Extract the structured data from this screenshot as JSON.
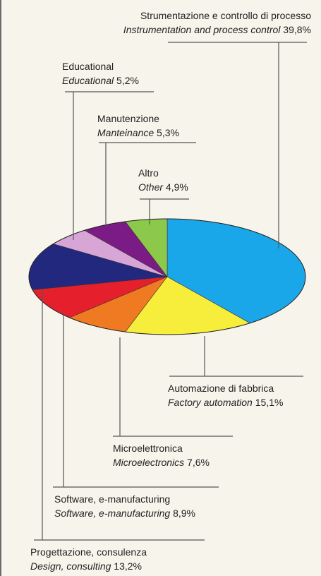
{
  "chart_data": {
    "type": "pie",
    "title": "",
    "series": [
      {
        "name": "",
        "slices": [
          {
            "label_it": "Strumentazione e controllo di processo",
            "label_en": "Instrumentation and process control",
            "value": 39.8,
            "display": "39,8%",
            "color": "#1aa7ea"
          },
          {
            "label_it": "Automazione di fabbrica",
            "label_en": "Factory automation",
            "value": 15.1,
            "display": "15,1%",
            "color": "#f6ee3a"
          },
          {
            "label_it": "Microelettronica",
            "label_en": "Microelectronics",
            "value": 7.6,
            "display": "7,6%",
            "color": "#f07a22"
          },
          {
            "label_it": "Software, e-manufacturing",
            "label_en": "Software, e-manufacturing",
            "value": 8.9,
            "display": "8,9%",
            "color": "#e5202c"
          },
          {
            "label_it": "Progettazione, consulenza",
            "label_en": "Design, consulting",
            "value": 13.2,
            "display": "13,2%",
            "color": "#22287e"
          },
          {
            "label_it": "Educational",
            "label_en": "Educational",
            "value": 5.2,
            "display": "5,2%",
            "color": "#d7a6d6"
          },
          {
            "label_it": "Manutenzione",
            "label_en": "Manteinance",
            "value": 5.3,
            "display": "5,3%",
            "color": "#7b1b86"
          },
          {
            "label_it": "Altro",
            "label_en": "Other",
            "value": 4.9,
            "display": "4,9%",
            "color": "#8cc94b"
          }
        ]
      }
    ],
    "start_angle": "12 o'clock",
    "direction": "clockwise",
    "legend": "callout labels",
    "line_color": "#555555"
  }
}
